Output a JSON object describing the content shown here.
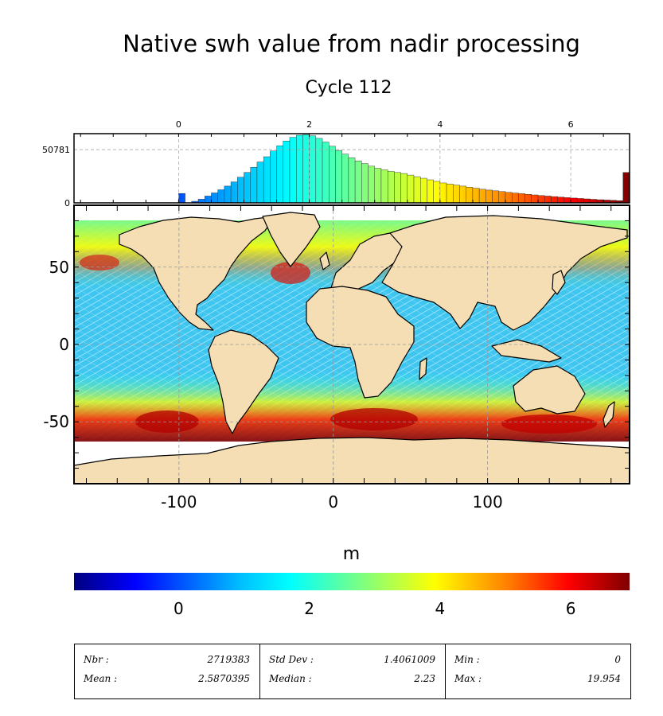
{
  "title": "Native swh value from nadir processing",
  "subtitle": "Cycle 112",
  "colors": {
    "land": "#f5deb3",
    "coast": "#000000",
    "ice": "#ffffff"
  },
  "chart_data": [
    {
      "type": "histogram",
      "x_ticks": [
        "0",
        "2",
        "4",
        "6"
      ],
      "x_tick_values": [
        0,
        2,
        4,
        6
      ],
      "xlim": [
        -1.6,
        6.9
      ],
      "y_ticks": [
        "0",
        "50781"
      ],
      "y_tick_values": [
        0,
        50781
      ],
      "ylim": [
        0,
        66000
      ],
      "bin_width": 0.1,
      "bins": [
        {
          "x": 0.0,
          "y": 9000
        },
        {
          "x": 0.2,
          "y": 1500
        },
        {
          "x": 0.3,
          "y": 3500
        },
        {
          "x": 0.4,
          "y": 6500
        },
        {
          "x": 0.5,
          "y": 9500
        },
        {
          "x": 0.6,
          "y": 12500
        },
        {
          "x": 0.7,
          "y": 16000
        },
        {
          "x": 0.8,
          "y": 20000
        },
        {
          "x": 0.9,
          "y": 24500
        },
        {
          "x": 1.0,
          "y": 29000
        },
        {
          "x": 1.1,
          "y": 34000
        },
        {
          "x": 1.2,
          "y": 39000
        },
        {
          "x": 1.3,
          "y": 44000
        },
        {
          "x": 1.4,
          "y": 49500
        },
        {
          "x": 1.5,
          "y": 54500
        },
        {
          "x": 1.6,
          "y": 59000
        },
        {
          "x": 1.7,
          "y": 62500
        },
        {
          "x": 1.8,
          "y": 64500
        },
        {
          "x": 1.9,
          "y": 65000
        },
        {
          "x": 2.0,
          "y": 64000
        },
        {
          "x": 2.1,
          "y": 61500
        },
        {
          "x": 2.2,
          "y": 58000
        },
        {
          "x": 2.3,
          "y": 54000
        },
        {
          "x": 2.4,
          "y": 50000
        },
        {
          "x": 2.5,
          "y": 46500
        },
        {
          "x": 2.6,
          "y": 43000
        },
        {
          "x": 2.7,
          "y": 40000
        },
        {
          "x": 2.8,
          "y": 37500
        },
        {
          "x": 2.9,
          "y": 35000
        },
        {
          "x": 3.0,
          "y": 33000
        },
        {
          "x": 3.1,
          "y": 31500
        },
        {
          "x": 3.2,
          "y": 30000
        },
        {
          "x": 3.3,
          "y": 29000
        },
        {
          "x": 3.4,
          "y": 28000
        },
        {
          "x": 3.5,
          "y": 26500
        },
        {
          "x": 3.6,
          "y": 25000
        },
        {
          "x": 3.7,
          "y": 23500
        },
        {
          "x": 3.8,
          "y": 22000
        },
        {
          "x": 3.9,
          "y": 20500
        },
        {
          "x": 4.0,
          "y": 19000
        },
        {
          "x": 4.1,
          "y": 18000
        },
        {
          "x": 4.2,
          "y": 17000
        },
        {
          "x": 4.3,
          "y": 16000
        },
        {
          "x": 4.4,
          "y": 15000
        },
        {
          "x": 4.5,
          "y": 14000
        },
        {
          "x": 4.6,
          "y": 13000
        },
        {
          "x": 4.7,
          "y": 12200
        },
        {
          "x": 4.8,
          "y": 11500
        },
        {
          "x": 4.9,
          "y": 10800
        },
        {
          "x": 5.0,
          "y": 10000
        },
        {
          "x": 5.1,
          "y": 9400
        },
        {
          "x": 5.2,
          "y": 8800
        },
        {
          "x": 5.3,
          "y": 8200
        },
        {
          "x": 5.4,
          "y": 7600
        },
        {
          "x": 5.5,
          "y": 7000
        },
        {
          "x": 5.6,
          "y": 6500
        },
        {
          "x": 5.7,
          "y": 6000
        },
        {
          "x": 5.8,
          "y": 5500
        },
        {
          "x": 5.9,
          "y": 5000
        },
        {
          "x": 6.0,
          "y": 4600
        },
        {
          "x": 6.1,
          "y": 4200
        },
        {
          "x": 6.2,
          "y": 3800
        },
        {
          "x": 6.3,
          "y": 3400
        },
        {
          "x": 6.4,
          "y": 3000
        },
        {
          "x": 6.5,
          "y": 2700
        },
        {
          "x": 6.6,
          "y": 2400
        },
        {
          "x": 6.7,
          "y": 2100
        },
        {
          "x": 6.8,
          "y": 29000
        }
      ]
    },
    {
      "type": "map",
      "x_ticks": [
        "-100",
        "0",
        "100"
      ],
      "x_tick_values": [
        -100,
        0,
        100
      ],
      "xlim": [
        -168,
        192
      ],
      "y_ticks": [
        "50",
        "0",
        "-50"
      ],
      "y_tick_values": [
        50,
        0,
        -50
      ],
      "ylim": [
        -90,
        90
      ],
      "grid": true
    },
    {
      "type": "colorbar",
      "label": "m",
      "ticks": [
        "0",
        "2",
        "4",
        "6"
      ],
      "tick_values": [
        0,
        2,
        4,
        6
      ],
      "range": [
        -1.6,
        6.9
      ],
      "colormap": [
        "#00007f",
        "#0000ff",
        "#00bfff",
        "#00ffff",
        "#7fff7f",
        "#ffff00",
        "#ff7f00",
        "#ff0000",
        "#7f0000"
      ]
    }
  ],
  "stats": {
    "nbr_label": "Nbr :",
    "nbr": "2719383",
    "mean_label": "Mean :",
    "mean": "2.5870395",
    "std_label": "Std Dev :",
    "std": "1.4061009",
    "median_label": "Median :",
    "median": "2.23",
    "min_label": "Min :",
    "min": "0",
    "max_label": "Max :",
    "max": "19.954"
  }
}
